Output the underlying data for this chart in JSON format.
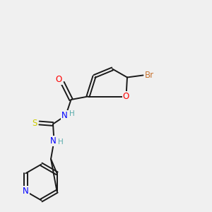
{
  "bg_color": "#f0f0f0",
  "bond_color": "#1a1a1a",
  "atom_colors": {
    "O": "#ff0000",
    "N": "#0000ff",
    "S": "#cccc00",
    "Br": "#c87533",
    "H": "#5aacac",
    "C": "#1a1a1a"
  },
  "figsize": [
    3.0,
    3.0
  ],
  "dpi": 100
}
